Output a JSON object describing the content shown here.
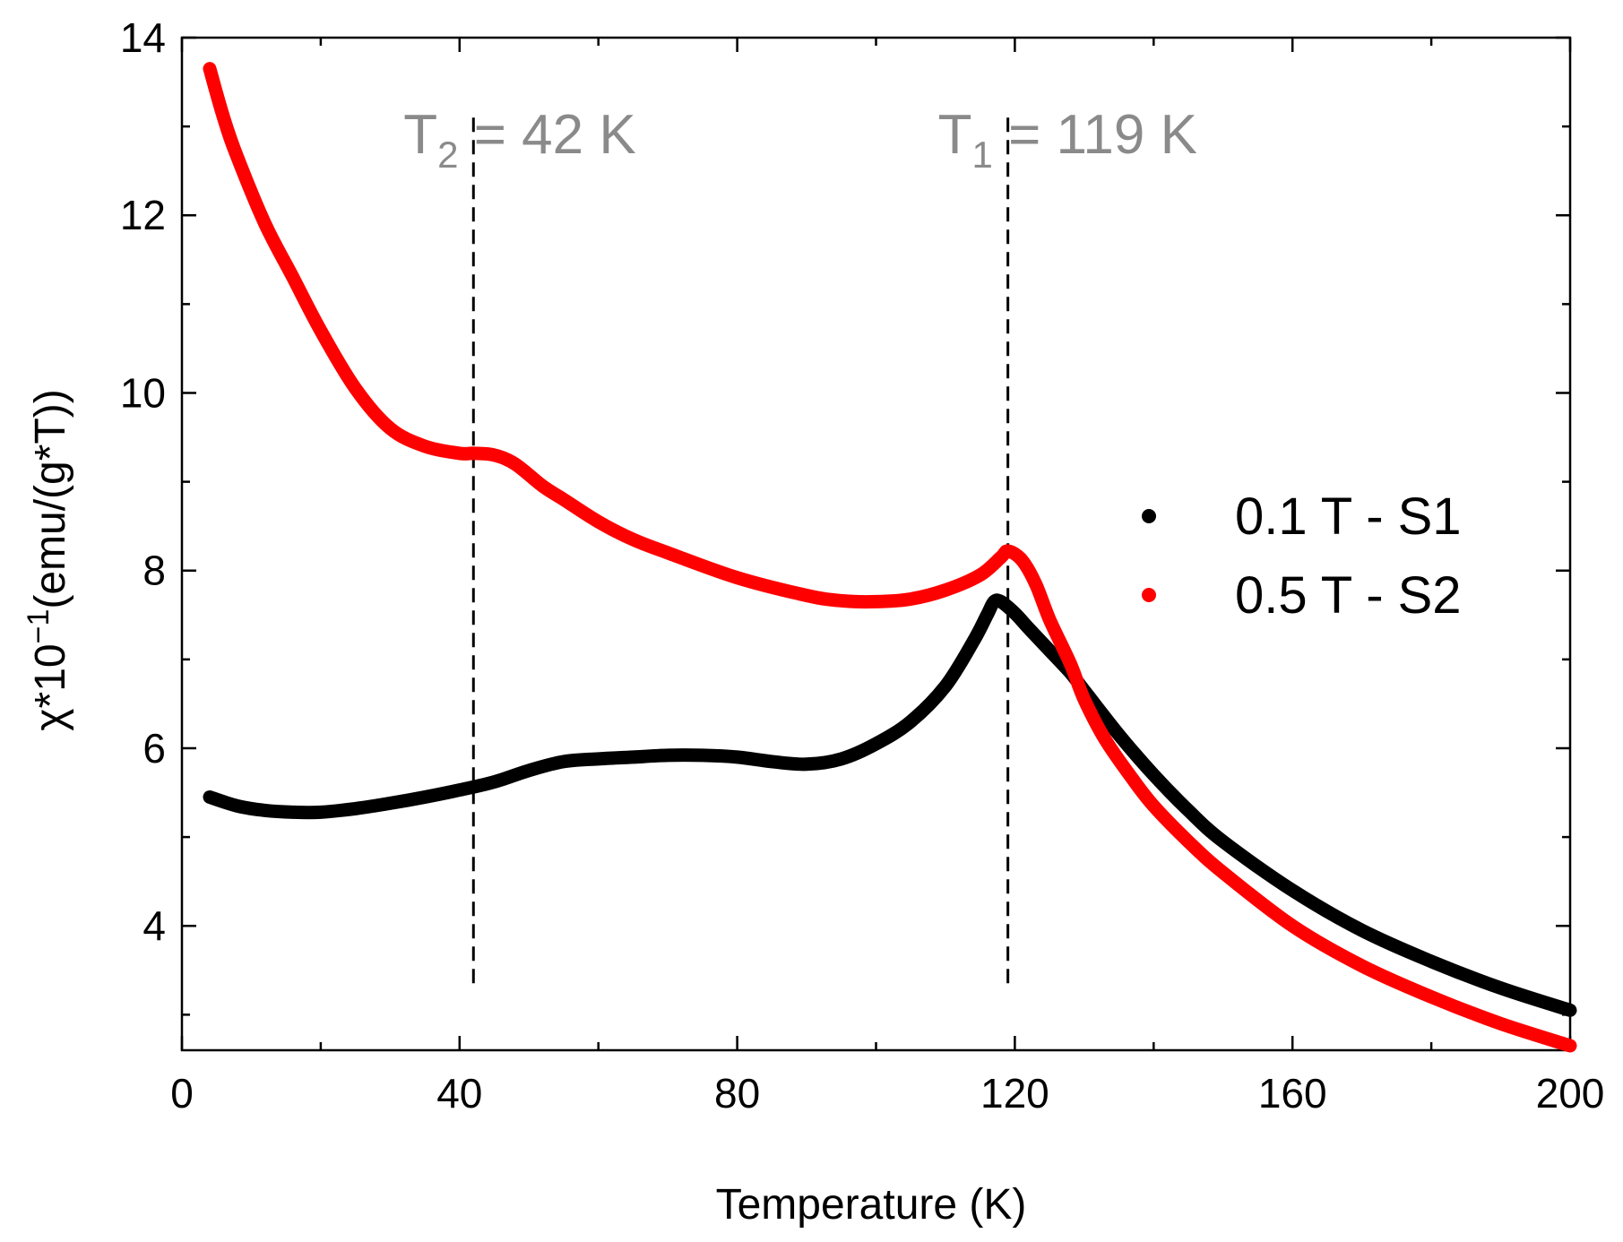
{
  "chart_data": {
    "type": "line",
    "title": "",
    "xlabel": "Temperature (K)",
    "ylabel_prefix": "χ",
    "ylabel_mid": "*10",
    "ylabel_exp": "−1",
    "ylabel_suffix": "(emu/(g*T))",
    "xlim": [
      0,
      200
    ],
    "ylim": [
      2.6,
      14
    ],
    "xticks": [
      0,
      40,
      80,
      120,
      160,
      200
    ],
    "xtick_labels": [
      "0",
      "40",
      "80",
      "120",
      "160",
      "200"
    ],
    "yticks": [
      4,
      6,
      8,
      10,
      12,
      14
    ],
    "ytick_labels": [
      "4",
      "6",
      "8",
      "10",
      "12",
      "14"
    ],
    "legend_position": "right",
    "series": [
      {
        "name": "0.1 T - S1",
        "color": "#000000",
        "x": [
          4,
          8,
          12,
          16,
          20,
          25,
          30,
          35,
          40,
          45,
          50,
          55,
          60,
          65,
          70,
          75,
          80,
          85,
          90,
          95,
          100,
          105,
          110,
          114,
          116,
          117,
          118,
          120,
          122,
          125,
          128,
          130,
          135,
          140,
          145,
          150,
          160,
          170,
          180,
          190,
          200
        ],
        "y": [
          5.45,
          5.35,
          5.3,
          5.28,
          5.28,
          5.32,
          5.38,
          5.45,
          5.53,
          5.62,
          5.75,
          5.85,
          5.88,
          5.9,
          5.92,
          5.92,
          5.9,
          5.85,
          5.82,
          5.88,
          6.05,
          6.3,
          6.7,
          7.2,
          7.5,
          7.65,
          7.65,
          7.52,
          7.35,
          7.1,
          6.85,
          6.65,
          6.15,
          5.7,
          5.3,
          4.95,
          4.4,
          3.95,
          3.6,
          3.3,
          3.05
        ]
      },
      {
        "name": "0.5 T - S2",
        "color": "#ff0000",
        "x": [
          4,
          6,
          8,
          12,
          16,
          20,
          25,
          30,
          35,
          40,
          42,
          45,
          48,
          52,
          55,
          60,
          65,
          70,
          80,
          90,
          95,
          100,
          105,
          110,
          115,
          118,
          119,
          121,
          123,
          125,
          128,
          130,
          133,
          137,
          140,
          145,
          150,
          160,
          170,
          180,
          190,
          200
        ],
        "y": [
          13.65,
          13.1,
          12.65,
          11.9,
          11.3,
          10.7,
          10.05,
          9.6,
          9.4,
          9.32,
          9.32,
          9.3,
          9.2,
          8.95,
          8.8,
          8.55,
          8.35,
          8.2,
          7.92,
          7.72,
          7.66,
          7.65,
          7.68,
          7.78,
          7.95,
          8.15,
          8.22,
          8.12,
          7.85,
          7.45,
          6.95,
          6.55,
          6.1,
          5.65,
          5.35,
          4.95,
          4.6,
          4.0,
          3.55,
          3.2,
          2.9,
          2.65
        ]
      }
    ],
    "annotations": [
      {
        "x": 42,
        "y_from": 3.3,
        "y_to": 13.1,
        "prefix": "T",
        "sub": "2",
        "suffix": " = 42 K"
      },
      {
        "x": 119,
        "y_from": 3.3,
        "y_to": 13.1,
        "prefix": "T",
        "sub": "1",
        "suffix": " = 119 K"
      }
    ]
  }
}
